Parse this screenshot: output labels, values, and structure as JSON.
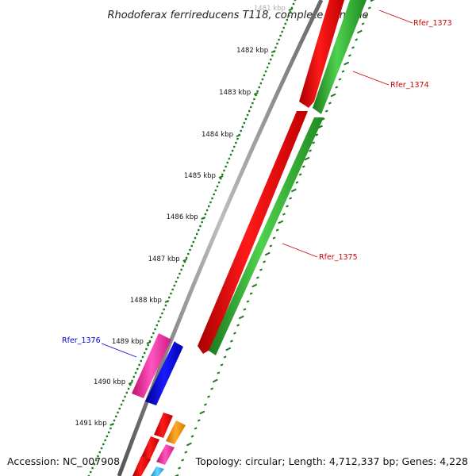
{
  "title": "Rhodoferax ferrireducens T118, complete genome",
  "footer": {
    "accession": "Accession: NC_007908",
    "summary": "Topology: circular; Length: 4,712,337 bp; Genes: 4,228"
  },
  "scale": {
    "ticks": [
      "1481 kbp",
      "1482 kbp",
      "1483 kbp",
      "1484 kbp",
      "1485 kbp",
      "1486 kbp",
      "1487 kbp",
      "1488 kbp",
      "1489 kbp",
      "1490 kbp",
      "1491 kbp"
    ]
  },
  "genes": [
    {
      "name": "Rfer_1373",
      "color": "#cc0000"
    },
    {
      "name": "Rfer_1374",
      "color": "#cc0000"
    },
    {
      "name": "Rfer_1375",
      "color": "#cc0000"
    },
    {
      "name": "Rfer_1376",
      "color": "#0000cc"
    }
  ],
  "colors": {
    "backbone": "#8a8a8a",
    "cds": "#ff0000",
    "orf": "#22aa22",
    "pink": "#ff2fa5",
    "blue": "#0000ee",
    "orange": "#ff9900",
    "cyan": "#33bbff",
    "dots": "#1a7a1a"
  }
}
